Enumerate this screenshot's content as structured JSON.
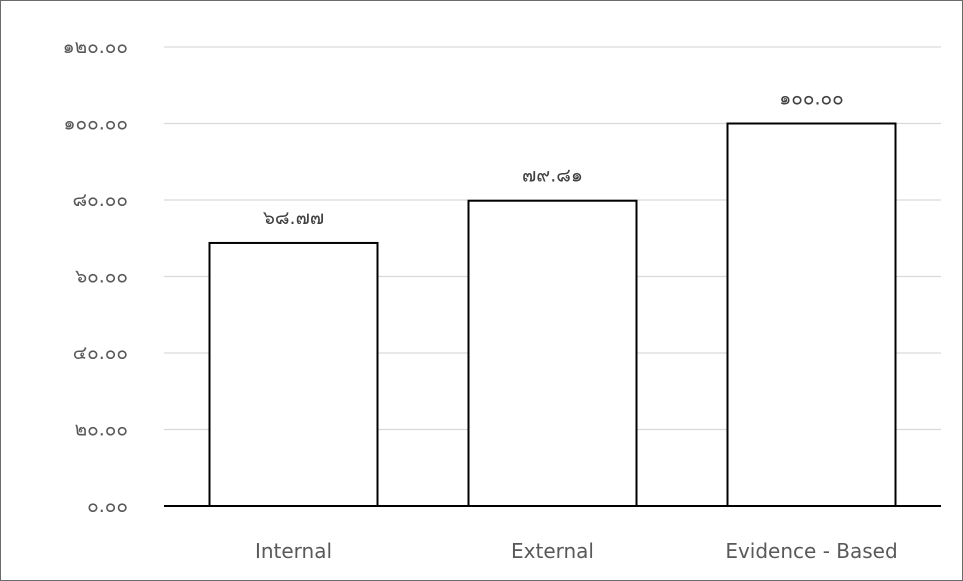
{
  "chart_data": {
    "type": "bar",
    "title": "",
    "xlabel": "",
    "ylabel": "",
    "categories": [
      "Internal",
      "External",
      "Evidence - Based"
    ],
    "values": [
      68.77,
      79.81,
      100.0
    ],
    "data_labels": [
      "๖๘.๗๗",
      "๗๙.๘๑",
      "๑๐๐.๐๐"
    ],
    "ylim": [
      0,
      120
    ],
    "yticks": [
      0,
      20,
      40,
      60,
      80,
      100,
      120
    ],
    "ytick_labels": [
      "๐.๐๐",
      "๒๐.๐๐",
      "๔๐.๐๐",
      "๖๐.๐๐",
      "๘๐.๐๐",
      "๑๐๐.๐๐",
      "๑๒๐.๐๐"
    ],
    "grid": true,
    "legend": "none",
    "colors": {
      "bar_fill": "#ffffff",
      "bar_stroke": "#000000",
      "grid": "#d9d9d9",
      "axis": "#000000",
      "text": "#595959"
    }
  }
}
